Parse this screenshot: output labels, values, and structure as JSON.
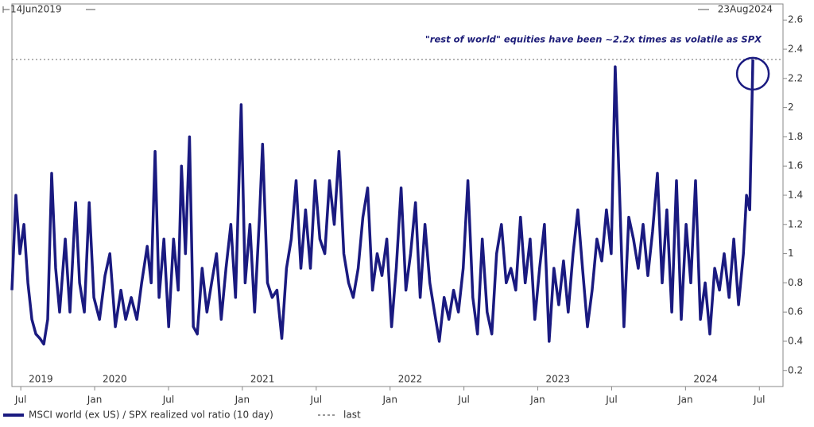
{
  "chart_data": {
    "type": "line",
    "start_label": "14Jun2019",
    "end_label": "23Aug2024",
    "annotation": "\"rest of world\" equities have been ~2.2x times as volatile as SPX",
    "reference_label": "last",
    "last_value": 2.33,
    "xlim": [
      2019.44,
      2024.66
    ],
    "ylim": [
      0.09,
      2.71
    ],
    "xticks": [
      {
        "value": 2019.5,
        "label": "Jul"
      },
      {
        "value": 2020.0,
        "label": "Jan"
      },
      {
        "value": 2020.5,
        "label": "Jul"
      },
      {
        "value": 2021.0,
        "label": "Jan"
      },
      {
        "value": 2021.5,
        "label": "Jul"
      },
      {
        "value": 2022.0,
        "label": "Jan"
      },
      {
        "value": 2022.5,
        "label": "Jul"
      },
      {
        "value": 2023.0,
        "label": "Jan"
      },
      {
        "value": 2023.5,
        "label": "Jul"
      },
      {
        "value": 2024.0,
        "label": "Jan"
      },
      {
        "value": 2024.5,
        "label": "Jul"
      }
    ],
    "year_labels": [
      {
        "value": 2019.5,
        "label": "2019"
      },
      {
        "value": 2020.0,
        "label": "2020"
      },
      {
        "value": 2021.0,
        "label": "2021"
      },
      {
        "value": 2022.0,
        "label": "2022"
      },
      {
        "value": 2023.0,
        "label": "2023"
      },
      {
        "value": 2024.0,
        "label": "2024"
      }
    ],
    "yticks": [
      0.2,
      0.4,
      0.6,
      0.8,
      1,
      1.2,
      1.4,
      1.6,
      1.8,
      2,
      2.2,
      2.4,
      2.6
    ],
    "grid": false,
    "x": [
      2019.44,
      2019.467,
      2019.494,
      2019.521,
      2019.548,
      2019.575,
      2019.602,
      2019.629,
      2019.656,
      2019.682,
      2019.709,
      2019.736,
      2019.763,
      2019.801,
      2019.833,
      2019.871,
      2019.898,
      2019.93,
      2019.963,
      2019.995,
      2020.033,
      2020.07,
      2020.103,
      2020.14,
      2020.178,
      2020.21,
      2020.248,
      2020.286,
      2020.318,
      2020.356,
      2020.383,
      2020.409,
      2020.436,
      2020.469,
      2020.501,
      2020.534,
      2020.566,
      2020.588,
      2020.615,
      2020.642,
      2020.668,
      2020.695,
      2020.728,
      2020.76,
      2020.792,
      2020.825,
      2020.857,
      2020.889,
      2020.922,
      2020.954,
      2020.992,
      2021.019,
      2021.051,
      2021.083,
      2021.116,
      2021.137,
      2021.17,
      2021.202,
      2021.234,
      2021.267,
      2021.299,
      2021.331,
      2021.364,
      2021.396,
      2021.428,
      2021.461,
      2021.493,
      2021.525,
      2021.558,
      2021.59,
      2021.622,
      2021.654,
      2021.687,
      2021.719,
      2021.751,
      2021.784,
      2021.816,
      2021.848,
      2021.881,
      2021.913,
      2021.945,
      2021.978,
      2022.01,
      2022.042,
      2022.075,
      2022.107,
      2022.139,
      2022.172,
      2022.204,
      2022.236,
      2022.269,
      2022.301,
      2022.333,
      2022.366,
      2022.398,
      2022.43,
      2022.463,
      2022.495,
      2022.527,
      2022.56,
      2022.592,
      2022.624,
      2022.657,
      2022.689,
      2022.721,
      2022.754,
      2022.786,
      2022.818,
      2022.851,
      2022.883,
      2022.915,
      2022.948,
      2022.98,
      2023.012,
      2023.045,
      2023.077,
      2023.109,
      2023.142,
      2023.174,
      2023.206,
      2023.239,
      2023.271,
      2023.303,
      2023.336,
      2023.368,
      2023.4,
      2023.433,
      2023.465,
      2023.497,
      2023.524,
      2023.551,
      2023.583,
      2023.616,
      2023.648,
      2023.68,
      2023.713,
      2023.745,
      2023.777,
      2023.81,
      2023.842,
      2023.874,
      2023.907,
      2023.939,
      2023.971,
      2024.004,
      2024.036,
      2024.068,
      2024.101,
      2024.133,
      2024.165,
      2024.198,
      2024.23,
      2024.262,
      2024.295,
      2024.327,
      2024.359,
      2024.392,
      2024.413,
      2024.435,
      2024.456
    ],
    "series": [
      {
        "name": "MSCI world (ex US) / SPX realized vol ratio (10 day)",
        "color": "#1a1a80",
        "values": [
          0.75,
          1.4,
          1.0,
          1.2,
          0.8,
          0.55,
          0.45,
          0.42,
          0.38,
          0.55,
          1.55,
          0.9,
          0.6,
          1.1,
          0.6,
          1.35,
          0.8,
          0.6,
          1.35,
          0.7,
          0.55,
          0.85,
          1.0,
          0.5,
          0.75,
          0.55,
          0.7,
          0.55,
          0.8,
          1.05,
          0.8,
          1.7,
          0.7,
          1.1,
          0.5,
          1.1,
          0.75,
          1.6,
          1.0,
          1.8,
          0.5,
          0.45,
          0.9,
          0.6,
          0.8,
          1.0,
          0.55,
          0.9,
          1.2,
          0.7,
          2.02,
          0.8,
          1.2,
          0.6,
          1.25,
          1.75,
          0.8,
          0.7,
          0.75,
          0.42,
          0.9,
          1.1,
          1.5,
          0.9,
          1.3,
          0.9,
          1.5,
          1.1,
          1.0,
          1.5,
          1.2,
          1.7,
          1.0,
          0.8,
          0.7,
          0.9,
          1.25,
          1.45,
          0.75,
          1.0,
          0.85,
          1.1,
          0.5,
          0.9,
          1.45,
          0.75,
          1.0,
          1.35,
          0.7,
          1.2,
          0.8,
          0.6,
          0.4,
          0.7,
          0.55,
          0.75,
          0.6,
          0.9,
          1.5,
          0.7,
          0.45,
          1.1,
          0.6,
          0.45,
          1.0,
          1.2,
          0.8,
          0.9,
          0.75,
          1.25,
          0.8,
          1.1,
          0.55,
          0.9,
          1.2,
          0.4,
          0.9,
          0.65,
          0.95,
          0.6,
          1.0,
          1.3,
          0.9,
          0.5,
          0.75,
          1.1,
          0.95,
          1.3,
          1.0,
          2.28,
          1.5,
          0.5,
          1.25,
          1.1,
          0.9,
          1.2,
          0.85,
          1.15,
          1.55,
          0.8,
          1.3,
          0.6,
          1.5,
          0.55,
          1.2,
          0.8,
          1.5,
          0.55,
          0.8,
          0.45,
          0.9,
          0.75,
          1.0,
          0.7,
          1.1,
          0.65,
          1.0,
          1.4,
          1.3,
          2.33
        ]
      }
    ]
  }
}
